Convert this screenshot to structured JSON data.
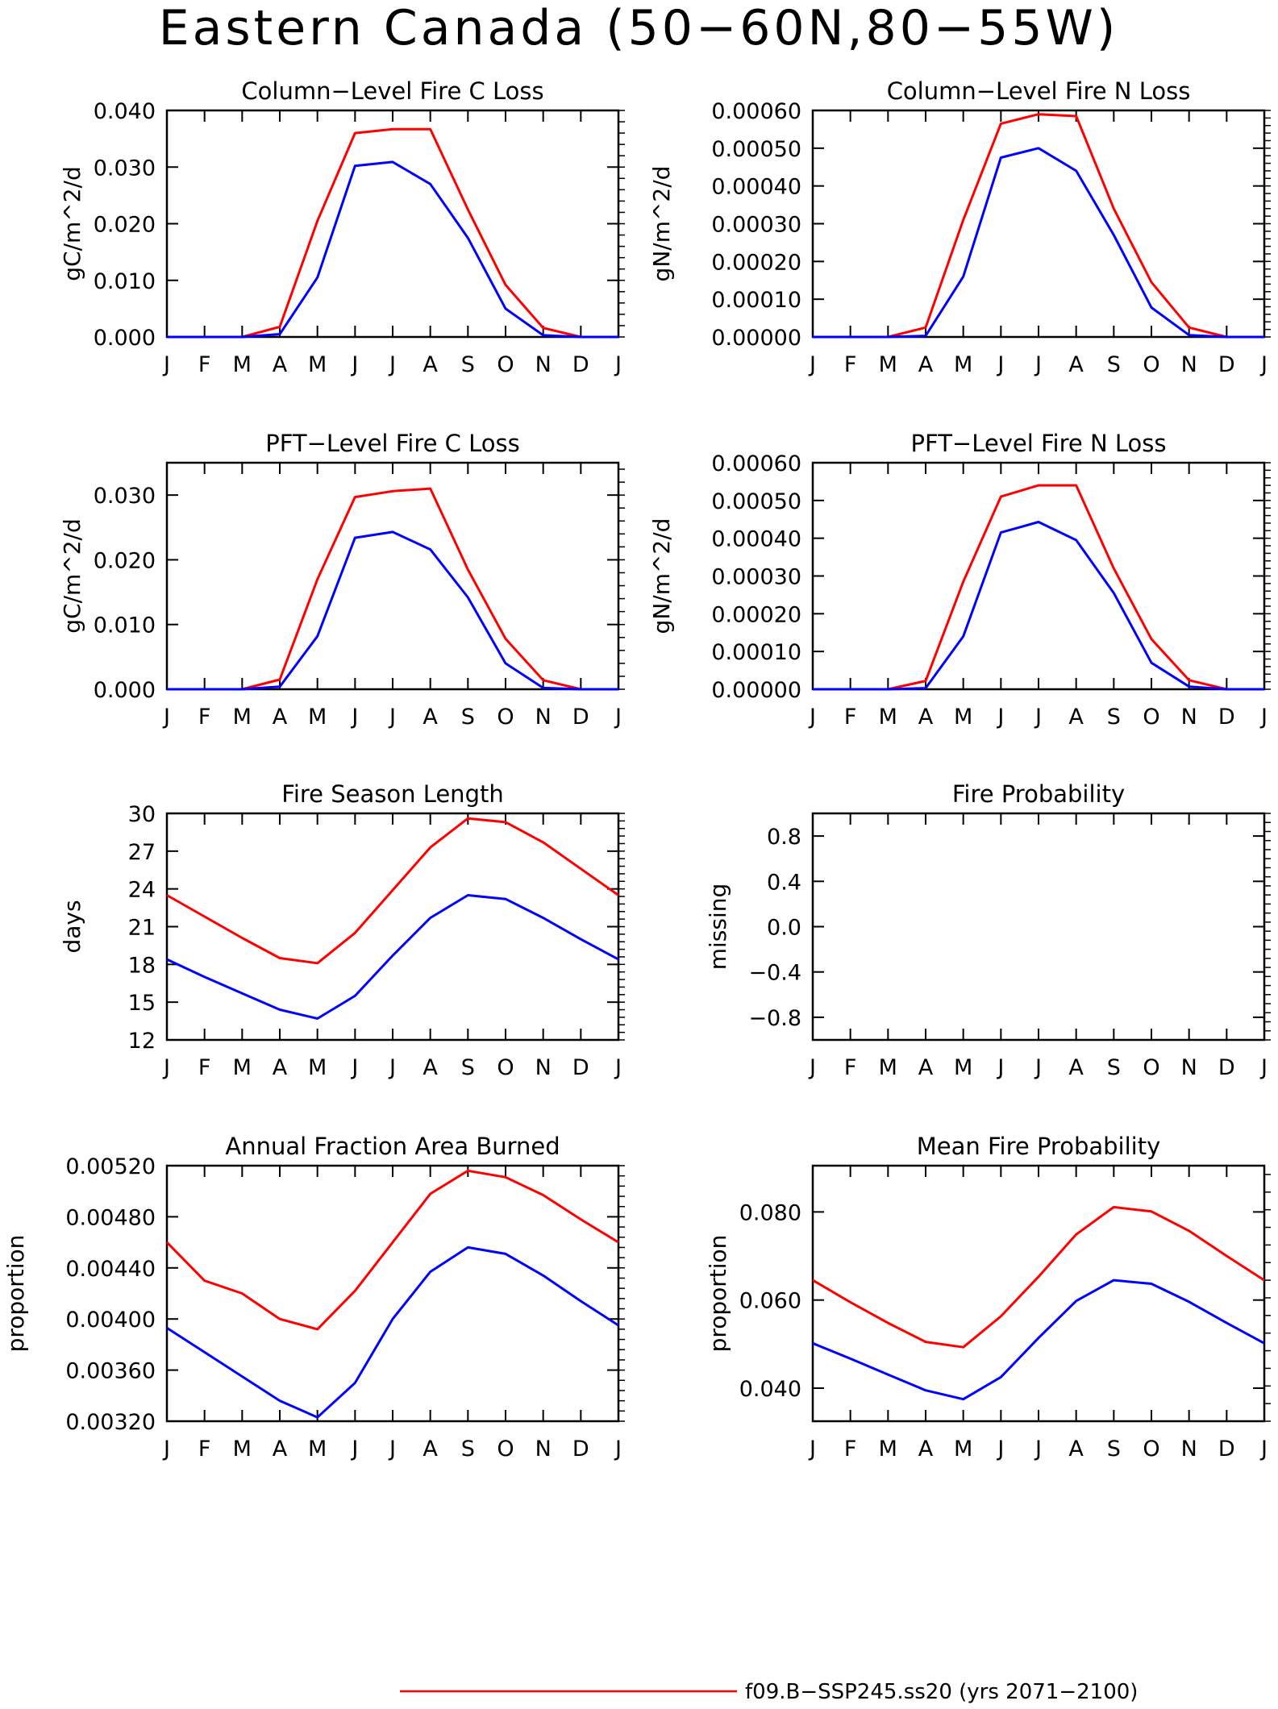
{
  "figure": {
    "title": "Eastern Canada (50−60N,80−55W)",
    "month_labels": [
      "J",
      "F",
      "M",
      "A",
      "M",
      "J",
      "J",
      "A",
      "S",
      "O",
      "N",
      "D",
      "J"
    ],
    "colors": {
      "case_red": "#ff0000",
      "control_blue": "#0000ff"
    },
    "legend": [
      {
        "label": "f09.B−SSP245.ss20 (yrs 2071−2100)",
        "color": "#ff0000"
      }
    ]
  },
  "chart_data": [
    {
      "id": "col-c",
      "type": "line",
      "title": "Column−Level Fire C Loss",
      "ylabel": "gC/m^2/d",
      "ylim": [
        0,
        0.04
      ],
      "yticks": [
        0,
        0.01,
        0.02,
        0.03,
        0.04
      ],
      "ytick_labels": [
        "0.000",
        "0.010",
        "0.020",
        "0.030",
        "0.040"
      ],
      "x": [
        "J",
        "F",
        "M",
        "A",
        "M",
        "J",
        "J",
        "A",
        "S",
        "O",
        "N",
        "D",
        "J"
      ],
      "series": [
        {
          "color": "#ff0000",
          "values": [
            0,
            0,
            0,
            0.0018,
            0.0205,
            0.036,
            0.0367,
            0.0367,
            0.0225,
            0.0092,
            0.0016,
            0,
            0
          ]
        },
        {
          "color": "#0000ff",
          "values": [
            0,
            0,
            0,
            0.0005,
            0.0105,
            0.0302,
            0.0309,
            0.027,
            0.0175,
            0.005,
            0.0003,
            0,
            0
          ]
        }
      ]
    },
    {
      "id": "col-n",
      "type": "line",
      "title": "Column−Level Fire N Loss",
      "ylabel": "gN/m^2/d",
      "ylim": [
        0,
        0.0006
      ],
      "yticks": [
        0,
        0.0001,
        0.0002,
        0.0003,
        0.0004,
        0.0005,
        0.0006
      ],
      "ytick_labels": [
        "0.00000",
        "0.00010",
        "0.00020",
        "0.00030",
        "0.00040",
        "0.00050",
        "0.00060"
      ],
      "x": [
        "J",
        "F",
        "M",
        "A",
        "M",
        "J",
        "J",
        "A",
        "S",
        "O",
        "N",
        "D",
        "J"
      ],
      "series": [
        {
          "color": "#ff0000",
          "values": [
            0,
            0,
            0,
            2.5e-05,
            0.00031,
            0.000565,
            0.00059,
            0.000585,
            0.00034,
            0.000145,
            2.5e-05,
            0,
            0
          ]
        },
        {
          "color": "#0000ff",
          "values": [
            0,
            0,
            0,
            3e-06,
            0.00016,
            0.000475,
            0.0005,
            0.00044,
            0.00027,
            7.8e-05,
            5e-06,
            0,
            0
          ]
        }
      ]
    },
    {
      "id": "pft-c",
      "type": "line",
      "title": "PFT−Level Fire C Loss",
      "ylabel": "gC/m^2/d",
      "ylim": [
        0,
        0.035
      ],
      "yticks": [
        0,
        0.01,
        0.02,
        0.03
      ],
      "ytick_labels": [
        "0.000",
        "0.010",
        "0.020",
        "0.030"
      ],
      "x": [
        "J",
        "F",
        "M",
        "A",
        "M",
        "J",
        "J",
        "A",
        "S",
        "O",
        "N",
        "D",
        "J"
      ],
      "series": [
        {
          "color": "#ff0000",
          "values": [
            0,
            0,
            0,
            0.0015,
            0.017,
            0.0297,
            0.0306,
            0.031,
            0.0185,
            0.0078,
            0.0014,
            0,
            0
          ]
        },
        {
          "color": "#0000ff",
          "values": [
            0,
            0,
            0,
            0.0004,
            0.0082,
            0.0234,
            0.0243,
            0.0216,
            0.0142,
            0.004,
            0.0002,
            0,
            0
          ]
        }
      ]
    },
    {
      "id": "pft-n",
      "type": "line",
      "title": "PFT−Level Fire N Loss",
      "ylabel": "gN/m^2/d",
      "ylim": [
        0,
        0.0006
      ],
      "yticks": [
        0,
        0.0001,
        0.0002,
        0.0003,
        0.0004,
        0.0005,
        0.0006
      ],
      "ytick_labels": [
        "0.00000",
        "0.00010",
        "0.00020",
        "0.00030",
        "0.00040",
        "0.00050",
        "0.00060"
      ],
      "x": [
        "J",
        "F",
        "M",
        "A",
        "M",
        "J",
        "J",
        "A",
        "S",
        "O",
        "N",
        "D",
        "J"
      ],
      "series": [
        {
          "color": "#ff0000",
          "values": [
            0,
            0,
            0,
            2.2e-05,
            0.000285,
            0.00051,
            0.00054,
            0.00054,
            0.00032,
            0.000133,
            2.4e-05,
            0,
            0
          ]
        },
        {
          "color": "#0000ff",
          "values": [
            0,
            0,
            0,
            3e-06,
            0.00014,
            0.000415,
            0.000443,
            0.000395,
            0.000255,
            7e-05,
            7e-06,
            0,
            0
          ]
        }
      ]
    },
    {
      "id": "season-length",
      "type": "line",
      "title": "Fire Season Length",
      "ylabel": "days",
      "ylim": [
        12,
        30
      ],
      "yticks": [
        12,
        15,
        18,
        21,
        24,
        27,
        30
      ],
      "ytick_labels": [
        "12",
        "15",
        "18",
        "21",
        "24",
        "27",
        "30"
      ],
      "x": [
        "J",
        "F",
        "M",
        "A",
        "M",
        "J",
        "J",
        "A",
        "S",
        "O",
        "N",
        "D",
        "J"
      ],
      "series": [
        {
          "color": "#ff0000",
          "values": [
            23.5,
            21.8,
            20.1,
            18.5,
            18.1,
            20.5,
            23.9,
            27.3,
            29.6,
            29.3,
            27.7,
            25.6,
            23.5
          ]
        },
        {
          "color": "#0000ff",
          "values": [
            18.4,
            17.0,
            15.7,
            14.4,
            13.7,
            15.5,
            18.7,
            21.7,
            23.5,
            23.2,
            21.7,
            20.0,
            18.4
          ]
        }
      ]
    },
    {
      "id": "fire-prob",
      "type": "line",
      "title": "Fire Probability",
      "ylabel": "missing",
      "ylim": [
        -1,
        1
      ],
      "yticks": [
        -0.8,
        -0.4,
        0,
        0.4,
        0.8
      ],
      "ytick_labels": [
        "−0.8",
        "−0.4",
        "0.0",
        "0.4",
        "0.8"
      ],
      "x": [
        "J",
        "F",
        "M",
        "A",
        "M",
        "J",
        "J",
        "A",
        "S",
        "O",
        "N",
        "D",
        "J"
      ],
      "series": []
    },
    {
      "id": "area-burned",
      "type": "line",
      "title": "Annual Fraction Area Burned",
      "ylabel": "proportion",
      "ylim": [
        0.0032,
        0.0052
      ],
      "yticks": [
        0.0032,
        0.0036,
        0.004,
        0.0044,
        0.0048,
        0.0052
      ],
      "ytick_labels": [
        "0.00320",
        "0.00360",
        "0.00400",
        "0.00440",
        "0.00480",
        "0.00520"
      ],
      "x": [
        "J",
        "F",
        "M",
        "A",
        "M",
        "J",
        "J",
        "A",
        "S",
        "O",
        "N",
        "D",
        "J"
      ],
      "series": [
        {
          "color": "#ff0000",
          "values": [
            0.0046,
            0.0043,
            0.0042,
            0.004,
            0.00392,
            0.00422,
            0.0046,
            0.00498,
            0.00516,
            0.00511,
            0.00497,
            0.00478,
            0.0046
          ]
        },
        {
          "color": "#0000ff",
          "values": [
            0.00393,
            0.00374,
            0.00355,
            0.00336,
            0.00323,
            0.0035,
            0.004,
            0.00437,
            0.00456,
            0.00451,
            0.00434,
            0.00414,
            0.00395
          ]
        }
      ]
    },
    {
      "id": "mean-fire-prob",
      "type": "line",
      "title": "Mean Fire Probability",
      "ylabel": "proportion",
      "ylim": [
        0.0325,
        0.0905
      ],
      "yticks": [
        0.04,
        0.06,
        0.08
      ],
      "ytick_labels": [
        "0.040",
        "0.060",
        "0.080"
      ],
      "x": [
        "J",
        "F",
        "M",
        "A",
        "M",
        "J",
        "J",
        "A",
        "S",
        "O",
        "N",
        "D",
        "J"
      ],
      "series": [
        {
          "color": "#ff0000",
          "values": [
            0.0645,
            0.0595,
            0.0548,
            0.0505,
            0.0493,
            0.0563,
            0.0653,
            0.0749,
            0.0811,
            0.0801,
            0.0757,
            0.07,
            0.0645
          ]
        },
        {
          "color": "#0000ff",
          "values": [
            0.0502,
            0.0467,
            0.0431,
            0.0395,
            0.0375,
            0.0425,
            0.0514,
            0.0598,
            0.0645,
            0.0637,
            0.0596,
            0.0548,
            0.0502
          ]
        }
      ]
    }
  ]
}
